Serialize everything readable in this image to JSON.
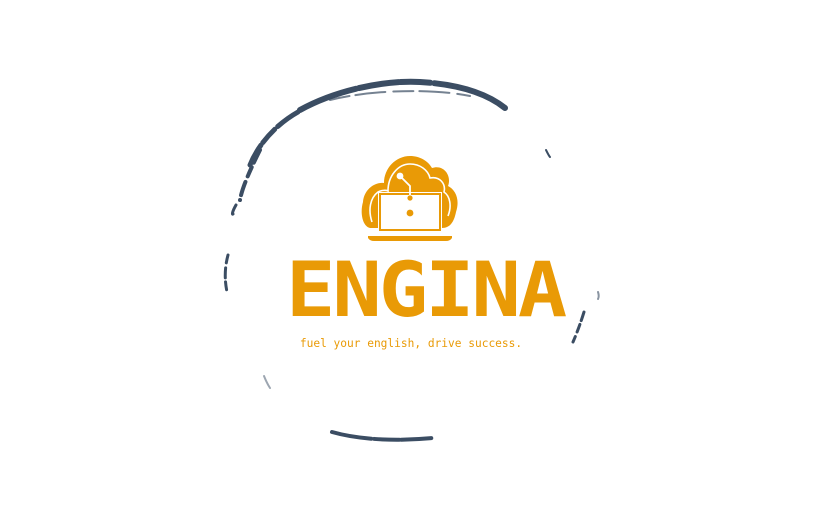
{
  "logo": {
    "brand_name": "ENGINA",
    "tagline": "fuel your english, drive success.",
    "brand_color": "#e99a06",
    "ring_color": "#3b4d63",
    "background_color": "#ffffff",
    "emblem_icon": "cloud-laptop-icon"
  }
}
